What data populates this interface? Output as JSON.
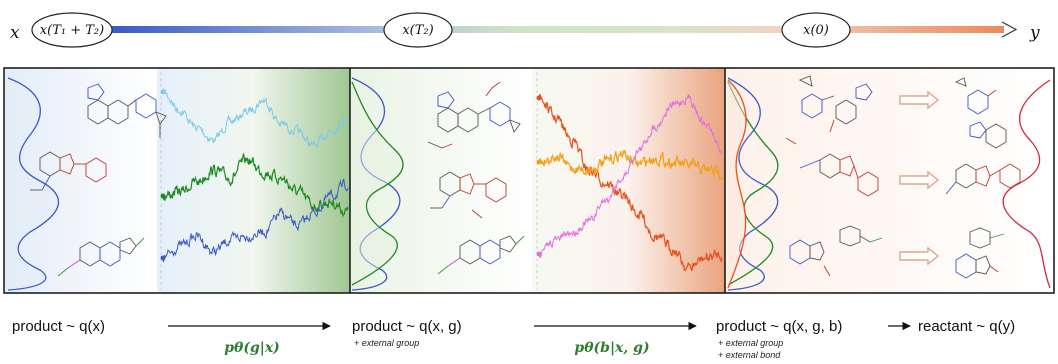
{
  "timeline": {
    "start_symbol": "x",
    "end_symbol": "y",
    "nodes": [
      {
        "label": "x(T₁ + T₂)"
      },
      {
        "label": "x(T₂)"
      },
      {
        "label": "x(0)"
      }
    ]
  },
  "captions": {
    "stage1": "product ~ q(x)",
    "model1": "pθ(g|x)",
    "stage2": "product ~ q(x, g)",
    "stage2_note": "+ external group",
    "model2": "pθ(b|x, g)",
    "stage3": "product ~ q(x, g, b)",
    "stage3_note1": "+ external group",
    "stage3_note2": "+ external bond",
    "final": "reactant ~ q(y)"
  },
  "colors": {
    "blue": "#3d5bc9",
    "light_blue": "#7ec8e8",
    "green": "#1f8a22",
    "orange": "#f2a016",
    "red_orange": "#e8501c",
    "magenta": "#e070e0",
    "salmon": "#e7a48a",
    "red": "#d7263d"
  }
}
